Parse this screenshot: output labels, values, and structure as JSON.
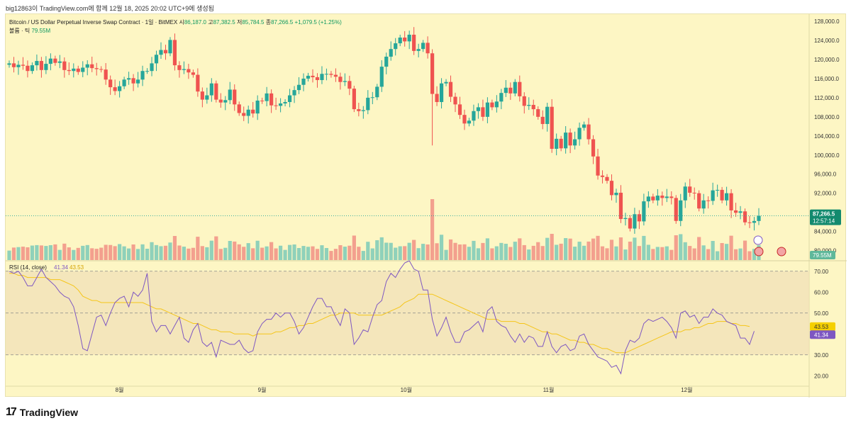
{
  "caption": "big12863이 TradingView.com에 함께 12월 18, 2025 20:02 UTC+9에 생성됨",
  "header": {
    "symbol": "Bitcoin / US Dollar Perpetual Inverse Swap Contract · 1일 · BitMEX",
    "o_label": "시",
    "o": "86,187.0",
    "h_label": "고",
    "h": "87,382.5",
    "l_label": "저",
    "l": "85,784.5",
    "c_label": "종",
    "c": "87,266.5",
    "chg": "+1,079.5 (+1.25%)",
    "vol_label": "볼륨 · 틱",
    "vol_value": "79.55M"
  },
  "price_badge": {
    "price": "87,266.5",
    "countdown": "12:57:14",
    "volume": "79.55M"
  },
  "rsi": {
    "label": "RSI (14, close)",
    "value": "41.34",
    "ma_value": "43.53"
  },
  "footer": {
    "brand": "TradingView"
  },
  "colors": {
    "up": "#26a69a",
    "down": "#ef5350",
    "up_vol": "#8fd1ba",
    "down_vol": "#f3a08e",
    "rsi": "#7e57c2",
    "rsi_ma": "#f5c518"
  },
  "chart_data": [
    {
      "type": "candlestick",
      "title": "Bitcoin / US Dollar Perpetual Inverse Swap Contract · 1일 · BitMEX",
      "y_ticks": [
        80000,
        84000,
        88000,
        92000,
        96000,
        100000,
        104000,
        108000,
        112000,
        116000,
        120000,
        124000,
        128000
      ],
      "y_tick_labels": [
        "80,000.0",
        "84,000.0",
        "",
        "92,000.0",
        "96,000.0",
        "100,000.0",
        "104,000.0",
        "108,000.0",
        "112,000.0",
        "116,000.0",
        "120,000.0",
        "124,000.0",
        "128,000.0"
      ],
      "x_labels": [
        "8월",
        "9월",
        "10월",
        "11월",
        "12월"
      ],
      "x_label_index": [
        24,
        55,
        86,
        117,
        147
      ],
      "current_price": 87266.5,
      "close": [
        119200,
        118400,
        118900,
        118700,
        117600,
        118800,
        119700,
        117800,
        119100,
        120200,
        119300,
        119600,
        117800,
        117600,
        118100,
        117400,
        118300,
        119000,
        118200,
        118000,
        117900,
        115800,
        114200,
        113400,
        114400,
        115800,
        116100,
        115000,
        115800,
        117600,
        117600,
        119200,
        121000,
        122000,
        121300,
        124100,
        118800,
        117800,
        118000,
        117300,
        116800,
        113300,
        111600,
        112500,
        115000,
        111600,
        111000,
        111500,
        113700,
        110600,
        108800,
        108200,
        109500,
        108700,
        111400,
        111300,
        112900,
        110400,
        110300,
        110800,
        111100,
        112500,
        113600,
        114700,
        116000,
        116600,
        116300,
        115700,
        117000,
        117000,
        116800,
        116400,
        115300,
        115500,
        113900,
        109600,
        109200,
        109400,
        112000,
        112100,
        114300,
        118500,
        120600,
        122200,
        123400,
        124600,
        123800,
        125200,
        121800,
        122200,
        123500,
        121300,
        112800,
        111100,
        115000,
        115300,
        112200,
        110600,
        108400,
        106600,
        107200,
        109200,
        110000,
        108000,
        111000,
        110000,
        111200,
        113000,
        114100,
        112900,
        115300,
        112300,
        110300,
        110500,
        109600,
        108000,
        106500,
        110100,
        101300,
        103400,
        101400,
        104700,
        102000,
        103300,
        105700,
        106400,
        103300,
        99700,
        95700,
        95400,
        94600,
        91600,
        92100,
        86600,
        86800,
        84600,
        87600,
        86100,
        90300,
        91300,
        90500,
        91500,
        91000,
        91300,
        91000,
        86200,
        90500,
        93400,
        92100,
        92000,
        88800,
        90500,
        90400,
        92600,
        92700,
        90500,
        92000,
        88400,
        87900,
        88200,
        85900,
        85800,
        86187,
        87266.5
      ],
      "rsi_series": [
        70,
        69,
        70,
        67,
        63,
        63,
        67,
        71,
        67,
        65,
        63,
        60,
        58,
        57,
        53,
        44,
        33,
        32,
        40,
        48,
        49,
        44,
        50,
        55,
        57,
        58,
        53,
        60,
        58,
        61,
        69,
        46,
        41,
        44,
        44,
        40,
        44,
        48,
        38,
        36,
        42,
        45,
        36,
        34,
        36,
        29,
        37,
        36,
        35,
        35,
        37,
        33,
        31,
        32,
        41,
        45,
        47,
        47,
        50,
        48,
        50,
        50,
        46,
        40,
        43,
        48,
        53,
        57,
        57,
        53,
        53,
        48,
        44,
        52,
        50,
        35,
        38,
        42,
        41,
        48,
        54,
        56,
        65,
        69,
        67,
        71,
        74,
        75,
        71,
        70,
        61,
        61,
        47,
        39,
        43,
        48,
        41,
        36,
        36,
        41,
        42,
        44,
        46,
        41,
        51,
        53,
        46,
        44,
        43,
        39,
        36,
        40,
        36,
        39,
        38,
        34,
        34,
        41,
        34,
        31,
        34,
        35,
        32,
        33,
        39,
        40,
        35,
        32,
        29,
        28,
        27,
        24,
        25,
        21,
        32,
        37,
        36,
        38,
        45,
        47,
        46,
        47,
        48,
        46,
        43,
        38,
        50,
        51,
        48,
        49,
        45,
        48,
        48,
        52,
        50,
        49,
        46,
        45,
        44,
        38,
        38,
        35,
        41.34
      ],
      "rsi_ma_series": [
        69,
        69,
        68,
        68,
        67,
        67,
        67,
        67,
        67,
        66,
        66,
        66,
        65,
        64,
        63,
        61,
        58,
        57,
        56,
        56,
        55,
        55,
        55,
        55,
        55,
        55,
        55,
        55,
        55,
        55,
        54,
        53,
        52,
        52,
        51,
        50,
        49,
        48,
        47,
        46,
        45,
        45,
        44,
        43,
        42,
        42,
        41,
        41,
        41,
        40,
        40,
        40,
        40,
        39,
        40,
        40,
        40,
        40,
        41,
        41,
        42,
        43,
        43,
        44,
        44,
        45,
        45,
        46,
        47,
        48,
        49,
        49,
        50,
        50,
        50,
        50,
        49,
        49,
        49,
        49,
        49,
        49,
        50,
        51,
        52,
        53,
        55,
        56,
        57,
        59,
        59,
        59,
        59,
        58,
        57,
        56,
        55,
        54,
        53,
        52,
        51,
        50,
        49,
        48,
        47,
        47,
        47,
        46,
        46,
        46,
        46,
        45,
        45,
        44,
        43,
        42,
        41,
        41,
        40,
        40,
        39,
        38,
        37,
        37,
        36,
        36,
        35,
        35,
        34,
        33,
        33,
        32,
        31,
        31,
        31,
        32,
        33,
        34,
        35,
        36,
        37,
        38,
        39,
        40,
        41,
        41,
        41,
        42,
        42,
        43,
        43,
        44,
        45,
        45,
        46,
        46,
        46,
        45,
        45,
        44,
        44,
        43.53
      ],
      "rsi_levels": [
        70,
        50,
        30
      ],
      "rsi_y_ticks": [
        20,
        30,
        40,
        50,
        60,
        70
      ],
      "rsi_ylim": [
        15,
        75
      ],
      "ylim": [
        78000,
        129500
      ]
    }
  ]
}
